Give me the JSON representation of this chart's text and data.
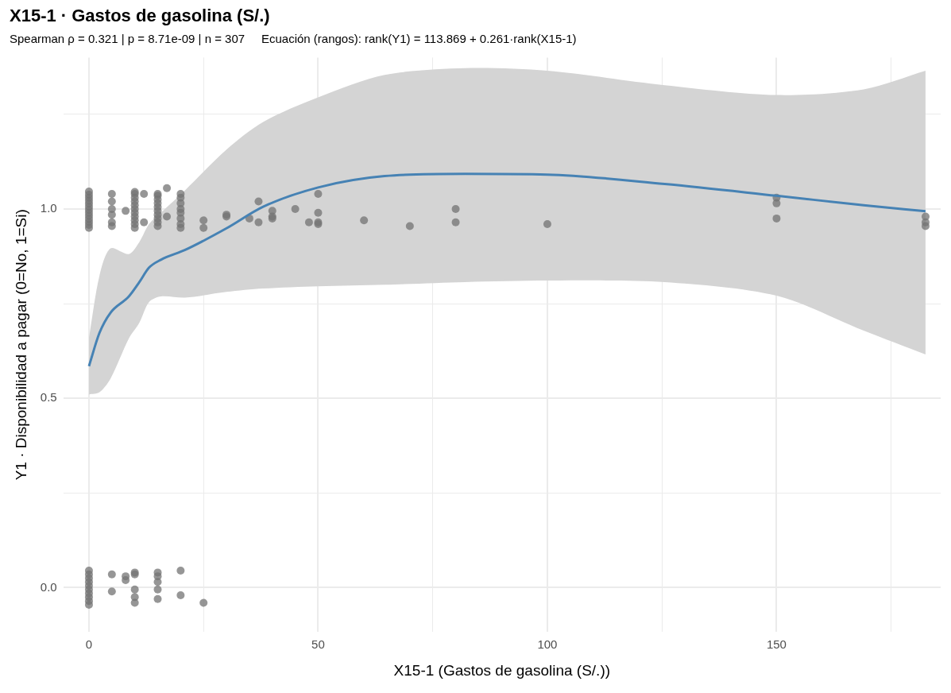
{
  "chart_data": {
    "type": "scatter",
    "title": "X15-1 · Gastos de gasolina (S/.)",
    "subtitle": "Spearman ρ = 0.321 | p = 8.71e-09 | n = 307     Ecuación (rangos): rank(Y1) = 113.869 + 0.261·rank(X15-1)",
    "xlabel": "X15-1 (Gastos de gasolina (S/.))",
    "ylabel": "Y1 · Disponibilidad a pagar (0=No, 1=Si)",
    "xlim": [
      -5.6,
      185.8
    ],
    "ylim": [
      -0.117,
      1.4
    ],
    "xticks": [
      0,
      {
        "value": 25,
        "label": null
      },
      50,
      {
        "value": 75,
        "label": null
      },
      100,
      {
        "value": 125,
        "label": null
      },
      150,
      {
        "value": 175,
        "label": null
      }
    ],
    "yticks": [
      {
        "value": 0,
        "label": "0.0"
      },
      {
        "value": 0.25,
        "label": null
      },
      {
        "value": 0.5,
        "label": "0.5"
      },
      {
        "value": 0.75,
        "label": null
      },
      {
        "value": 1,
        "label": "1.0"
      },
      {
        "value": 1.25,
        "label": null
      }
    ],
    "grid": true,
    "legend": false,
    "marker": "circle",
    "series": [
      {
        "color": "#737373",
        "x": [
          0,
          0,
          0,
          0,
          0,
          0,
          0,
          0,
          0,
          0,
          0,
          0,
          0,
          5,
          5,
          5,
          5,
          5,
          5,
          8,
          10,
          10,
          10,
          10,
          10,
          10,
          10,
          10,
          10,
          10,
          10,
          12,
          12,
          15,
          15,
          15,
          15,
          15,
          15,
          15,
          15,
          15,
          15,
          17,
          17,
          20,
          20,
          20,
          20,
          20,
          20,
          20,
          20,
          25,
          25,
          30,
          30,
          35,
          37,
          37,
          40,
          40,
          40,
          45,
          48,
          50,
          50,
          50,
          50,
          60,
          70,
          80,
          80,
          100,
          150,
          150,
          150,
          182.5,
          182.5,
          182.5,
          0,
          0,
          0,
          0,
          0,
          0,
          0,
          0,
          0,
          0,
          5,
          5,
          8,
          8,
          10,
          10,
          10,
          10,
          10,
          15,
          15,
          15,
          15,
          15,
          20,
          20,
          25
        ],
        "values": [
          0.95,
          0.958,
          0.966,
          0.974,
          0.982,
          0.99,
          0.998,
          1.006,
          1.014,
          1.022,
          1.03,
          1.038,
          1.046,
          1.04,
          1.02,
          1.0,
          0.985,
          0.965,
          0.955,
          0.995,
          0.95,
          0.96,
          0.97,
          0.98,
          0.99,
          1.0,
          1.01,
          1.02,
          1.03,
          1.04,
          1.045,
          1.04,
          0.965,
          0.955,
          0.965,
          0.975,
          0.985,
          0.995,
          1.005,
          1.015,
          1.025,
          1.035,
          1.04,
          1.055,
          0.98,
          1.04,
          1.03,
          1.015,
          1.0,
          0.99,
          0.975,
          0.96,
          0.95,
          0.97,
          0.95,
          0.985,
          0.98,
          0.975,
          1.02,
          0.965,
          0.995,
          0.98,
          0.975,
          1.0,
          0.965,
          1.04,
          0.99,
          0.965,
          0.96,
          0.97,
          0.955,
          1.0,
          0.965,
          0.96,
          1.03,
          1.015,
          0.975,
          0.98,
          0.965,
          0.955,
          -0.045,
          -0.035,
          -0.025,
          -0.015,
          -0.005,
          0.005,
          0.015,
          0.025,
          0.035,
          0.045,
          0.035,
          -0.01,
          0.03,
          0.02,
          0.04,
          0.035,
          -0.005,
          -0.025,
          -0.04,
          0.04,
          0.03,
          0.015,
          -0.005,
          -0.03,
          0.045,
          -0.02,
          -0.04
        ]
      },
      {
        "type": "line",
        "marker": "none",
        "color": "#4682b4",
        "x": [
          0,
          2.3,
          4.7,
          8.7,
          11,
          13.1,
          15.7,
          21,
          30,
          38,
          50,
          64.5,
          82,
          100,
          125.6,
          150,
          169,
          182.5
        ],
        "values": [
          0.585,
          0.673,
          0.726,
          0.769,
          0.807,
          0.845,
          0.866,
          0.892,
          0.949,
          1.006,
          1.057,
          1.087,
          1.093,
          1.091,
          1.066,
          1.035,
          1.01,
          0.994
        ],
        "lower": [
          0.51,
          0.516,
          0.552,
          0.658,
          0.7,
          0.754,
          0.769,
          0.766,
          0.781,
          0.79,
          0.796,
          0.8,
          0.807,
          0.811,
          0.807,
          0.771,
          0.679,
          0.616
        ],
        "upper": [
          0.66,
          0.824,
          0.896,
          0.881,
          0.913,
          0.96,
          0.99,
          1.05,
          1.157,
          1.23,
          1.295,
          1.354,
          1.372,
          1.365,
          1.327,
          1.301,
          1.316,
          1.365
        ]
      }
    ]
  }
}
